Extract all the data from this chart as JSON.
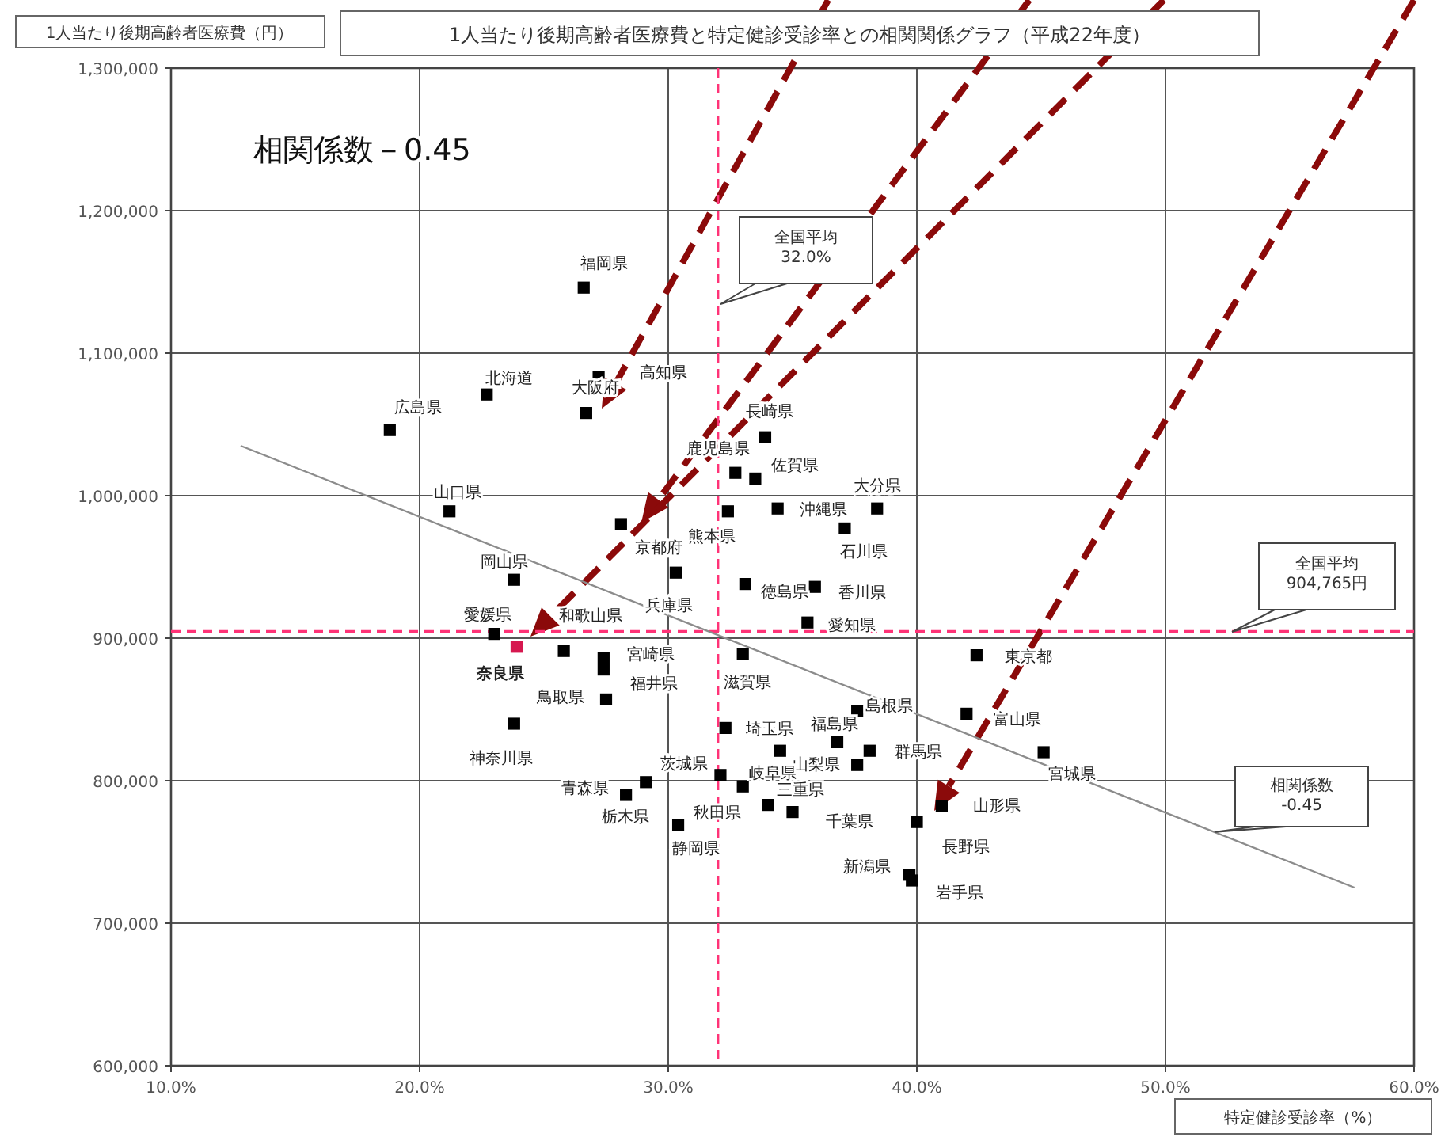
{
  "chart_data": {
    "type": "scatter",
    "title": "1人当たり後期高齢者医療費と特定健診受診率との相関関係グラフ（平成22年度）",
    "xlabel": "特定健診受診率（%）",
    "ylabel": "1人当たり後期高齢者医療費（円）",
    "xlim": [
      10,
      60
    ],
    "ylim": [
      600000,
      1300000
    ],
    "xticks": [
      {
        "value": 10,
        "label": "10.0%"
      },
      {
        "value": 20,
        "label": "20.0%"
      },
      {
        "value": 30,
        "label": "30.0%"
      },
      {
        "value": 40,
        "label": "40.0%"
      },
      {
        "value": 50,
        "label": "50.0%"
      },
      {
        "value": 60,
        "label": "60.0%"
      }
    ],
    "yticks": [
      {
        "value": 600000,
        "label": "600,000"
      },
      {
        "value": 700000,
        "label": "700,000"
      },
      {
        "value": 800000,
        "label": "800,000"
      },
      {
        "value": 900000,
        "label": "900,000"
      },
      {
        "value": 1000000,
        "label": "1,000,000"
      },
      {
        "value": 1100000,
        "label": "1,100,000"
      },
      {
        "value": 1200000,
        "label": "1,200,000"
      },
      {
        "value": 1300000,
        "label": "1,300,000"
      }
    ],
    "grid": true,
    "series": [
      {
        "marker": "square",
        "color": "#000000",
        "x": [
          26.6,
          27.2,
          26.7,
          22.7,
          18.8,
          21.2,
          28.1,
          30.3,
          23.8,
          23.0,
          23.9,
          25.8,
          27.4,
          27.4,
          27.5,
          23.8,
          33.9,
          32.7,
          33.5,
          34.4,
          38.4,
          32.4,
          37.1,
          33.1,
          35.9,
          35.6,
          33.0,
          42.4,
          42.0,
          45.1,
          37.6,
          36.8,
          38.1,
          37.6,
          32.3,
          34.5,
          32.1,
          33.0,
          34.0,
          35.0,
          29.1,
          28.3,
          30.4,
          41.0,
          40.0,
          39.7,
          39.8
        ],
        "values": [
          1146000,
          1083000,
          1058000,
          1071000,
          1046000,
          989000,
          980000,
          946000,
          941000,
          903000,
          894000,
          891000,
          886000,
          878000,
          857000,
          840000,
          1041000,
          1016000,
          1012000,
          991000,
          991000,
          989000,
          977000,
          938000,
          936000,
          911000,
          889000,
          888000,
          847000,
          820000,
          849000,
          827000,
          821000,
          811000,
          837000,
          821000,
          804000,
          796000,
          783000,
          778000,
          799000,
          790000,
          769000,
          782000,
          771000,
          734000,
          730000
        ],
        "colors": [
          "#000000",
          "#000000",
          "#000000",
          "#000000",
          "#000000",
          "#000000",
          "#000000",
          "#000000",
          "#000000",
          "#000000",
          "#d6174f",
          "#000000",
          "#000000",
          "#000000",
          "#000000",
          "#000000",
          "#000000",
          "#000000",
          "#000000",
          "#000000",
          "#000000",
          "#000000",
          "#000000",
          "#000000",
          "#000000",
          "#000000",
          "#000000",
          "#000000",
          "#000000",
          "#000000",
          "#000000",
          "#000000",
          "#000000",
          "#000000",
          "#000000",
          "#000000",
          "#000000",
          "#000000",
          "#000000",
          "#000000",
          "#000000",
          "#000000",
          "#000000",
          "#000000",
          "#000000",
          "#000000",
          "#000000"
        ]
      },
      {
        "type": "line",
        "color": "#8c8c8c",
        "x": [
          12.8,
          57.6
        ],
        "values": [
          1035000,
          725000
        ]
      }
    ],
    "ref_lines": [
      {
        "axis": "x",
        "value": 32.0,
        "label": "全国平均\n32.0%",
        "color": "#ff3377",
        "line_style": "dashed"
      },
      {
        "axis": "y",
        "value": 904765,
        "label": "全国平均\n904,765円",
        "color": "#ff3377",
        "line_style": "dashed"
      }
    ],
    "annotations": [
      "相関係数－0.45",
      "相関係数\n-0.45",
      {
        "text": "福岡県",
        "x": 26.6,
        "y": 1146000
      },
      {
        "text": "高知県",
        "x": 27.2,
        "y": 1083000
      },
      {
        "text": "大阪府",
        "x": 26.7,
        "y": 1058000
      },
      {
        "text": "北海道",
        "x": 22.7,
        "y": 1071000
      },
      {
        "text": "広島県",
        "x": 18.8,
        "y": 1046000
      },
      {
        "text": "山口県",
        "x": 21.2,
        "y": 989000
      },
      {
        "text": "京都府",
        "x": 28.1,
        "y": 980000
      },
      {
        "text": "兵庫県",
        "x": 30.3,
        "y": 946000
      },
      {
        "text": "岡山県",
        "x": 23.8,
        "y": 941000
      },
      {
        "text": "愛媛県",
        "x": 23.0,
        "y": 903000
      },
      {
        "text": "奈良県",
        "x": 23.9,
        "y": 894000
      },
      {
        "text": "和歌山県",
        "x": 25.8,
        "y": 891000
      },
      {
        "text": "宮崎県",
        "x": 27.4,
        "y": 886000
      },
      {
        "text": "福井県",
        "x": 27.4,
        "y": 878000
      },
      {
        "text": "鳥取県",
        "x": 27.5,
        "y": 857000
      },
      {
        "text": "神奈川県",
        "x": 23.8,
        "y": 840000
      },
      {
        "text": "長崎県",
        "x": 33.9,
        "y": 1041000
      },
      {
        "text": "鹿児島県",
        "x": 32.7,
        "y": 1016000
      },
      {
        "text": "佐賀県",
        "x": 33.5,
        "y": 1012000
      },
      {
        "text": "沖縄県",
        "x": 34.4,
        "y": 991000
      },
      {
        "text": "大分県",
        "x": 38.4,
        "y": 991000
      },
      {
        "text": "熊本県",
        "x": 32.4,
        "y": 989000
      },
      {
        "text": "石川県",
        "x": 37.1,
        "y": 977000
      },
      {
        "text": "徳島県",
        "x": 33.1,
        "y": 938000
      },
      {
        "text": "香川県",
        "x": 35.9,
        "y": 936000
      },
      {
        "text": "愛知県",
        "x": 35.6,
        "y": 911000
      },
      {
        "text": "滋賀県",
        "x": 33.0,
        "y": 889000
      },
      {
        "text": "東京都",
        "x": 42.4,
        "y": 888000
      },
      {
        "text": "富山県",
        "x": 42.0,
        "y": 847000
      },
      {
        "text": "宮城県",
        "x": 45.1,
        "y": 820000
      },
      {
        "text": "島根県",
        "x": 37.6,
        "y": 849000
      },
      {
        "text": "福島県",
        "x": 36.8,
        "y": 827000
      },
      {
        "text": "群馬県",
        "x": 38.1,
        "y": 821000
      },
      {
        "text": "山梨県",
        "x": 37.6,
        "y": 811000
      },
      {
        "text": "埼玉県",
        "x": 32.3,
        "y": 837000
      },
      {
        "text": "三重県",
        "x": 34.5,
        "y": 821000
      },
      {
        "text": "茨城県",
        "x": 32.1,
        "y": 804000
      },
      {
        "text": "岐阜県",
        "x": 33.0,
        "y": 796000
      },
      {
        "text": "秋田県",
        "x": 34.0,
        "y": 783000
      },
      {
        "text": "千葉県",
        "x": 35.0,
        "y": 778000
      },
      {
        "text": "栃木県",
        "x": 29.1,
        "y": 799000
      },
      {
        "text": "青森県",
        "x": 28.3,
        "y": 790000
      },
      {
        "text": "静岡県",
        "x": 30.4,
        "y": 769000
      },
      {
        "text": "山形県",
        "x": 41.0,
        "y": 782000
      },
      {
        "text": "長野県",
        "x": 40.0,
        "y": 771000
      },
      {
        "text": "新潟県",
        "x": 39.7,
        "y": 734000
      },
      {
        "text": "岩手県",
        "x": 39.8,
        "y": 730000
      }
    ]
  }
}
